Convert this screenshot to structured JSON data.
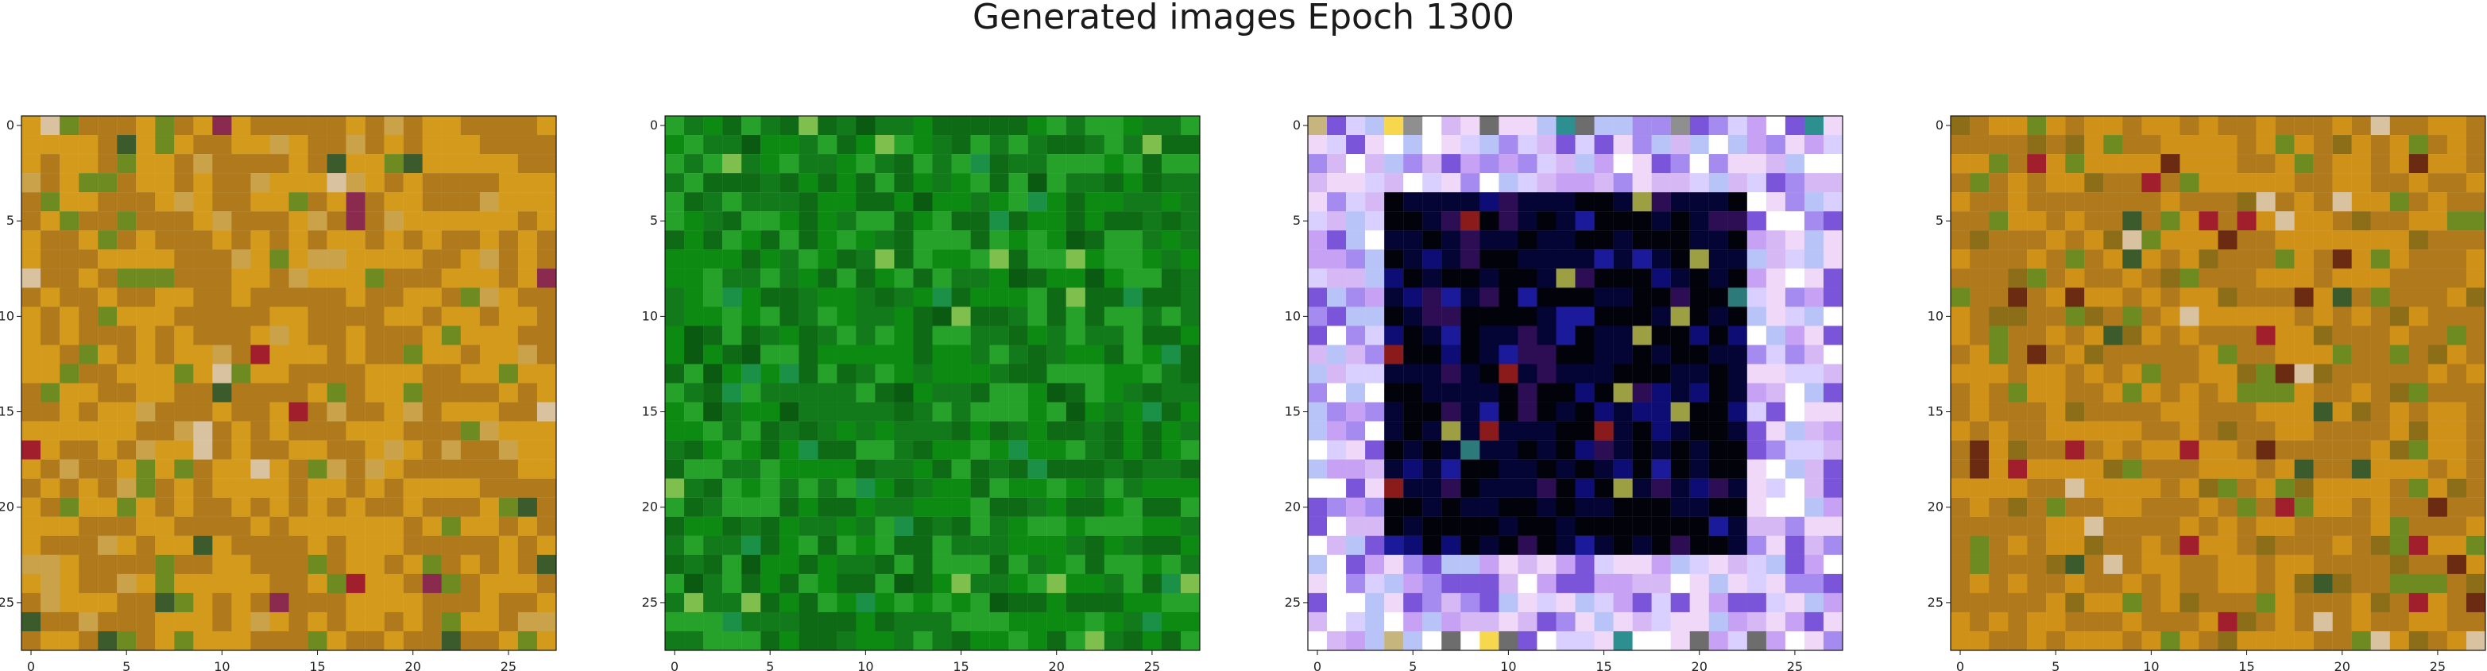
{
  "figure": {
    "title": "Generated images Epoch 1300"
  },
  "chart_data": [
    {
      "type": "heatmap",
      "title": "",
      "xlabel": "",
      "ylabel": "",
      "x_ticks": [
        0,
        5,
        10,
        15,
        20,
        25
      ],
      "y_ticks": [
        0,
        5,
        10,
        15,
        20,
        25
      ],
      "xlim": [
        -0.5,
        27.5
      ],
      "ylim": [
        27.5,
        -0.5
      ],
      "grid": false,
      "pixel_grid": {
        "rows": 28,
        "cols": 28,
        "dominant_palette": [
          "#d39a1b",
          "#b07a1c",
          "#6e8b22",
          "#c9a24a",
          "#8a2a4e",
          "#a11f2c",
          "#d8c2a0",
          "#3c5b2d"
        ],
        "pattern": "orange-yellow noise with scattered green, maroon and magenta pixels"
      }
    },
    {
      "type": "heatmap",
      "title": "",
      "xlabel": "",
      "ylabel": "",
      "x_ticks": [
        0,
        5,
        10,
        15,
        20,
        25
      ],
      "y_ticks": [
        0,
        5,
        10,
        15,
        20,
        25
      ],
      "xlim": [
        -0.5,
        27.5
      ],
      "ylim": [
        27.5,
        -0.5
      ],
      "grid": false,
      "pixel_grid": {
        "rows": 28,
        "cols": 28,
        "dominant_palette": [
          "#0c8a12",
          "#127a1b",
          "#0f6a16",
          "#26a22a",
          "#1b9148",
          "#7fbf4d",
          "#0b5a11"
        ],
        "pattern": "green noise with lighter green patches"
      }
    },
    {
      "type": "heatmap",
      "title": "",
      "xlabel": "",
      "ylabel": "",
      "x_ticks": [
        0,
        5,
        10,
        15,
        20,
        25
      ],
      "y_ticks": [
        0,
        5,
        10,
        15,
        20,
        25
      ],
      "xlim": [
        -0.5,
        27.5
      ],
      "ylim": [
        27.5,
        -0.5
      ],
      "grid": false,
      "pixel_grid": {
        "rows": 28,
        "cols": 28,
        "border_palette": [
          "#d6b8f5",
          "#c7a1f4",
          "#b8c3f7",
          "#f0d8f8",
          "#a58bf0",
          "#d9d0ff",
          "#ffffff",
          "#7b55d9"
        ],
        "interior_palette": [
          "#02020b",
          "#050535",
          "#0d0d75",
          "#1a1a9a",
          "#2d0d54",
          "#8b1a1a",
          "#2c7a7a",
          "#9c9f42"
        ],
        "pattern": "lavender / light-blue frame around a dark navy-black square with scattered colored pixels"
      }
    },
    {
      "type": "heatmap",
      "title": "",
      "xlabel": "",
      "ylabel": "",
      "x_ticks": [
        0,
        5,
        10,
        15,
        20,
        25
      ],
      "y_ticks": [
        0,
        5,
        10,
        15,
        20,
        25
      ],
      "xlim": [
        -0.5,
        27.5
      ],
      "ylim": [
        27.5,
        -0.5
      ],
      "grid": false,
      "pixel_grid": {
        "rows": 28,
        "cols": 28,
        "dominant_palette": [
          "#cf9118",
          "#b07a1c",
          "#8c6e19",
          "#6e8b22",
          "#3c5b2d",
          "#a11f2c",
          "#d8c2a0",
          "#6b2a12"
        ],
        "pattern": "orange-yellow noise with scattered dark brown, green and red pixels"
      }
    }
  ]
}
